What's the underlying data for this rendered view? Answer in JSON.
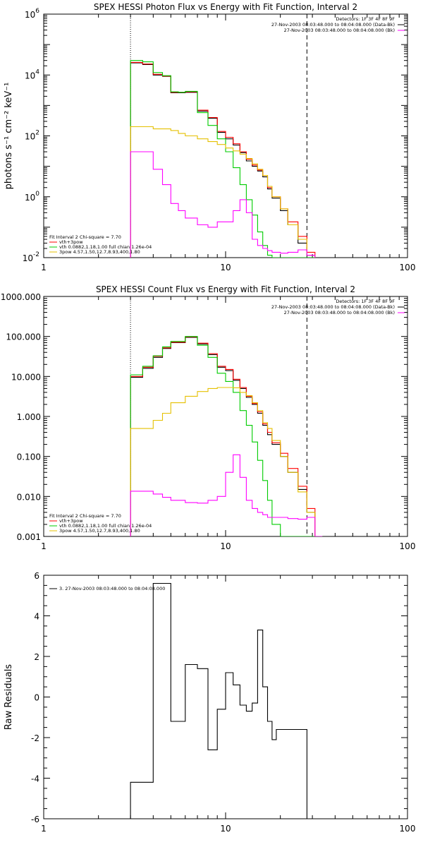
{
  "chart_data": [
    {
      "type": "line",
      "title": "SPEX HESSI Photon Flux vs Energy with Fit Function, Interval 2",
      "xlabel": "",
      "ylabel": "photons s⁻¹ cm⁻² keV⁻¹",
      "xscale": "log",
      "yscale": "log",
      "xlim": [
        1,
        100
      ],
      "ylim": [
        0.01,
        1000000
      ],
      "x_ticks": [
        "1",
        "10",
        "100"
      ],
      "y_ticks": [
        {
          "base": "10",
          "exp": "-2"
        },
        {
          "base": "10",
          "exp": "0"
        },
        {
          "base": "10",
          "exp": "2"
        },
        {
          "base": "10",
          "exp": "4"
        },
        {
          "base": "10",
          "exp": "6"
        }
      ],
      "vlines": [
        {
          "x": 3.0,
          "style": "dotted"
        },
        {
          "x": 28.0,
          "style": "dashed"
        }
      ],
      "header": [
        "Detectors: 1F 3F 4F 8F 9F",
        "27-Nov-2003 08:03:48.000 to 08:04:08.000 (Data-Bk)",
        "27-Nov-2003 08:03:48.000 to 08:04:08.000 (Bk)"
      ],
      "header_colors": [
        "",
        "#000000",
        "#ff00ff"
      ],
      "fit_info": [
        "Fit Interval 2   Chi-square = 7.70",
        "vth+3pow",
        "vth 0.0882,1.18,1.00  full chian 1.26e-04",
        "3pow 4.57,1.50,12.7,8.93,400,1.80"
      ],
      "fit_info_colors": [
        "",
        "#ff0000",
        "#00cc00",
        "#e5c000"
      ],
      "edges": [
        3.0,
        3.5,
        4.0,
        4.5,
        5.0,
        5.5,
        6.0,
        7.0,
        8.0,
        9.0,
        10.0,
        11.0,
        12.0,
        13.0,
        14.0,
        15.0,
        16.0,
        17.0,
        18.0,
        20.0,
        22.0,
        25.0,
        28.0,
        31.0
      ],
      "series": [
        {
          "color": "#000000",
          "values": [
            25000,
            22000,
            10000,
            9000,
            2600,
            2600,
            2700,
            650,
            380,
            130,
            80,
            50,
            28,
            15,
            10,
            7,
            4.5,
            1.8,
            0.9,
            0.35,
            0.12,
            0.03,
            0.012
          ]
        },
        {
          "color": "#ff0000",
          "values": [
            26000,
            23000,
            10500,
            9200,
            2700,
            2700,
            2800,
            700,
            400,
            140,
            90,
            55,
            30,
            17,
            11,
            7.5,
            5,
            2,
            1,
            0.4,
            0.15,
            0.05,
            0.015
          ]
        },
        {
          "color": "#00cc00",
          "values": [
            30000,
            27000,
            12000,
            9500,
            2800,
            2700,
            2900,
            580,
            220,
            80,
            30,
            9,
            2.5,
            0.8,
            0.25,
            0.07,
            0.025,
            0.012,
            0.01,
            0.01,
            0.01,
            0.01,
            0.01
          ]
        },
        {
          "color": "#e5c000",
          "values": [
            200,
            200,
            170,
            170,
            150,
            120,
            100,
            80,
            65,
            52,
            40,
            32,
            25,
            18,
            12,
            8,
            5,
            2.2,
            1,
            0.4,
            0.12,
            0.04,
            0.012
          ]
        },
        {
          "color": "#ff00ff",
          "values": [
            30,
            30,
            8,
            2.5,
            0.6,
            0.35,
            0.2,
            0.12,
            0.1,
            0.15,
            0.15,
            0.35,
            0.8,
            0.3,
            0.04,
            0.025,
            0.02,
            0.017,
            0.015,
            0.014,
            0.015,
            0.018,
            0.012
          ]
        }
      ]
    },
    {
      "type": "line",
      "title": "SPEX HESSI Count Flux vs Energy with Fit Function, Interval 2",
      "xlabel": "",
      "ylabel": "",
      "xscale": "log",
      "yscale": "log",
      "xlim": [
        1,
        100
      ],
      "ylim": [
        0.001,
        1000
      ],
      "x_ticks": [
        "1",
        "10",
        "100"
      ],
      "y_ticks": [
        "0.001",
        "0.010",
        "0.100",
        "1.000",
        "10.000",
        "100.000",
        "1000.000"
      ],
      "vlines": [
        {
          "x": 3.0,
          "style": "dotted"
        },
        {
          "x": 28.0,
          "style": "dashed"
        }
      ],
      "header": [
        "Detectors: 1F 3F 4F 8F 9F",
        "27-Nov-2003 08:03:48.000 to 08:04:08.000 (Data-Bk)",
        "27-Nov-2003 08:03:48.000 to 08:04:08.000 (Bk)"
      ],
      "header_colors": [
        "",
        "#000000",
        "#ff00ff"
      ],
      "fit_info": [
        "Fit Interval 2   Chi-square = 7.70",
        "vth+3pow",
        "vth 0.0882,1.18,1.00  full chian 1.26e-04",
        "3pow 4.57,1.50,12.7,8.93,400,1.80"
      ],
      "fit_info_colors": [
        "",
        "#ff0000",
        "#00cc00",
        "#e5c000"
      ],
      "edges": [
        3.0,
        3.5,
        4.0,
        4.5,
        5.0,
        6.0,
        7.0,
        8.0,
        9.0,
        10.0,
        11.0,
        12.0,
        13.0,
        14.0,
        15.0,
        16.0,
        17.0,
        18.0,
        20.0,
        22.0,
        25.0,
        28.0,
        31.0,
        34.0
      ],
      "series": [
        {
          "color": "#000000",
          "values": [
            9.5,
            16,
            30,
            50,
            70,
            95,
            65,
            35,
            17,
            14,
            8,
            5,
            3,
            2,
            1.2,
            0.6,
            0.35,
            0.2,
            0.1,
            0.04,
            0.015,
            0.004,
            0.001
          ]
        },
        {
          "color": "#ff0000",
          "values": [
            10,
            17,
            32,
            52,
            72,
            98,
            68,
            37,
            18,
            15,
            8.5,
            5.3,
            3.2,
            2.1,
            1.3,
            0.65,
            0.4,
            0.22,
            0.12,
            0.05,
            0.018,
            0.005,
            0.001
          ]
        },
        {
          "color": "#00cc00",
          "values": [
            11,
            18,
            33,
            55,
            75,
            100,
            60,
            30,
            12,
            7.5,
            4,
            1.4,
            0.6,
            0.23,
            0.08,
            0.025,
            0.008,
            0.002,
            0.001,
            0.001,
            0.001,
            0.001,
            0.001
          ]
        },
        {
          "color": "#e5c000",
          "values": [
            0.5,
            0.5,
            0.8,
            1.2,
            2.2,
            3.2,
            4.2,
            5,
            5.3,
            5.3,
            5.2,
            4,
            3.3,
            2.2,
            1.4,
            0.7,
            0.5,
            0.25,
            0.1,
            0.04,
            0.013,
            0.004,
            0.001
          ]
        },
        {
          "color": "#ff00ff",
          "values": [
            0.0135,
            0.0135,
            0.0115,
            0.0095,
            0.008,
            0.007,
            0.0068,
            0.008,
            0.01,
            0.04,
            0.11,
            0.03,
            0.008,
            0.005,
            0.004,
            0.0035,
            0.003,
            0.003,
            0.003,
            0.0028,
            0.0027,
            0.003,
            0.001
          ]
        }
      ]
    },
    {
      "type": "line",
      "title": "",
      "xlabel": "",
      "ylabel": "Raw Residuals",
      "xscale": "log",
      "yscale": "linear",
      "xlim": [
        1,
        100
      ],
      "ylim": [
        -6,
        6
      ],
      "x_ticks": [
        "1",
        "10",
        "100"
      ],
      "y_ticks": [
        "-6",
        "-4",
        "-2",
        "0",
        "2",
        "4",
        "6"
      ],
      "legend": "3. 27-Nov-2003 08:03:48.000 to 08:04:08.000",
      "legend_position": "top-left",
      "edges": [
        3.0,
        4.0,
        5.0,
        6.0,
        7.0,
        8.0,
        9.0,
        10.0,
        11.0,
        12.0,
        13.0,
        14.0,
        15.0,
        16.0,
        17.0,
        18.0,
        19.0,
        20.0,
        22.0,
        25.0,
        28.0
      ],
      "series": [
        {
          "color": "#000000",
          "values": [
            -4.2,
            5.6,
            -1.2,
            1.6,
            1.4,
            -2.6,
            -0.6,
            1.2,
            0.6,
            -0.4,
            -0.7,
            -0.3,
            3.3,
            0.5,
            -1.2,
            -2.1,
            -1.6,
            -1.6,
            -1.6,
            -1.6
          ]
        }
      ]
    }
  ]
}
